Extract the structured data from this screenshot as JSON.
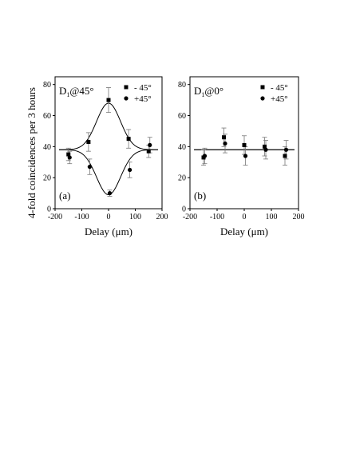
{
  "shared_ylabel": "4-fold coincidences per 3 hours",
  "chart_data": [
    {
      "type": "scatter",
      "title": "",
      "panel_tag": "(a)",
      "setting": {
        "main": "D",
        "sub": "1",
        "rest": "@45°"
      },
      "xlabel": "Delay (μm)",
      "ylabel": "4-fold coincidences per 3 hours",
      "xlim": [
        -200,
        200
      ],
      "ylim": [
        0,
        85
      ],
      "xticks": [
        -200,
        -100,
        0,
        100,
        200
      ],
      "xtick_labels": [
        "-200",
        "-100",
        "0",
        "100",
        "200"
      ],
      "yticks": [
        0,
        20,
        40,
        60,
        80
      ],
      "ytick_labels": [
        "0",
        "20",
        "40",
        "60",
        "80"
      ],
      "grid": false,
      "legend_position": "top-right",
      "series": [
        {
          "name": "- 45°",
          "marker": "square",
          "x": [
            -150,
            -75,
            0,
            75,
            150
          ],
          "y": [
            35,
            43,
            70,
            45,
            37
          ],
          "err": [
            4,
            6,
            8,
            6,
            4
          ],
          "fit": {
            "model": "gaussian",
            "baseline": 38,
            "amplitude": 30,
            "center": 0,
            "sigma": 45
          }
        },
        {
          "name": "+45°",
          "marker": "circle",
          "x": [
            -150,
            -75,
            0,
            75,
            150
          ],
          "y": [
            33,
            27,
            10,
            25,
            41
          ],
          "err": [
            4,
            5,
            2,
            5,
            5
          ],
          "fit": {
            "model": "gaussian",
            "baseline": 38,
            "amplitude": -29,
            "center": 0,
            "sigma": 45
          }
        }
      ]
    },
    {
      "type": "scatter",
      "title": "",
      "panel_tag": "(b)",
      "setting": {
        "main": "D",
        "sub": "1",
        "rest": "@0°"
      },
      "xlabel": "Delay (μm)",
      "ylabel": "",
      "xlim": [
        -200,
        200
      ],
      "ylim": [
        0,
        85
      ],
      "xticks": [
        -200,
        -100,
        0,
        100,
        200
      ],
      "xtick_labels": [
        "-200",
        "-100",
        "0",
        "100",
        "200"
      ],
      "yticks": [
        0,
        20,
        40,
        60,
        80
      ],
      "ytick_labels": [
        "0",
        "20",
        "40",
        "60",
        "80"
      ],
      "grid": false,
      "legend_position": "top-right",
      "series": [
        {
          "name": "- 45°",
          "marker": "square",
          "x": [
            -150,
            -75,
            0,
            75,
            150
          ],
          "y": [
            33,
            46,
            41,
            40,
            34
          ],
          "err": [
            5,
            6,
            6,
            6,
            6
          ],
          "fit": {
            "model": "constant",
            "baseline": 38
          }
        },
        {
          "name": "+45°",
          "marker": "circle",
          "x": [
            -150,
            -75,
            0,
            75,
            150
          ],
          "y": [
            34,
            42,
            34,
            38,
            38
          ],
          "err": [
            5,
            6,
            6,
            6,
            6
          ],
          "fit": {
            "model": "constant",
            "baseline": 38
          }
        }
      ]
    }
  ]
}
